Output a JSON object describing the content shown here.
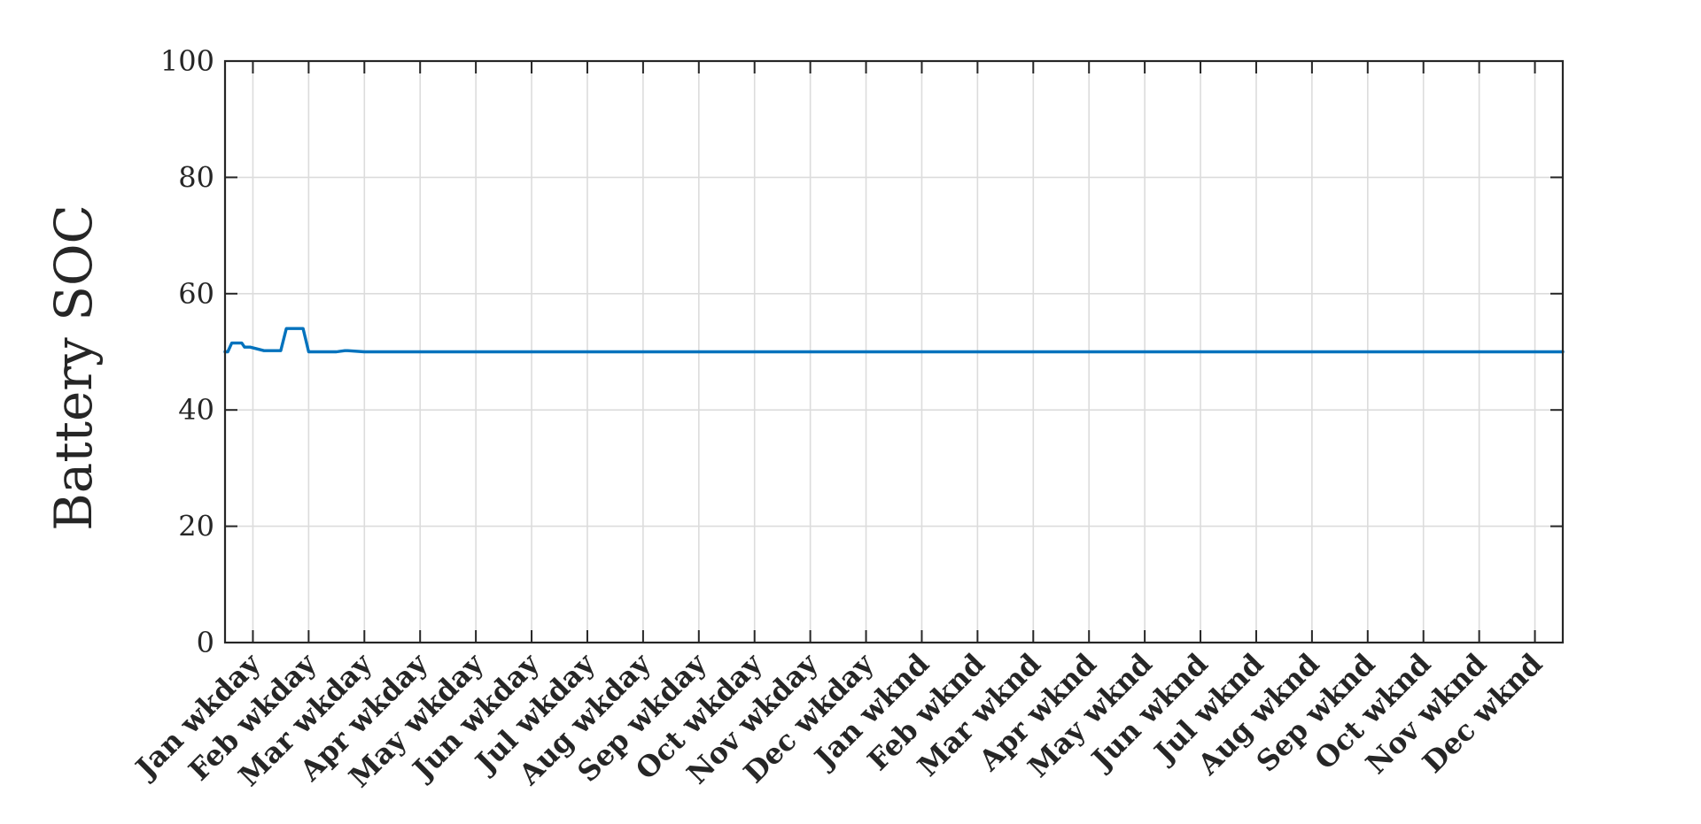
{
  "chart_data": {
    "type": "line",
    "title": "",
    "xlabel": "",
    "ylabel": "Battery SOC",
    "ylim": [
      0,
      100
    ],
    "yticks": [
      0,
      20,
      40,
      60,
      80,
      100
    ],
    "xlim": [
      0,
      24
    ],
    "grid": "on",
    "legend": "none",
    "categories": [
      "Jan wkday",
      "Feb wkday",
      "Mar wkday",
      "Apr wkday",
      "May wkday",
      "Jun wkday",
      "Jul wkday",
      "Aug wkday",
      "Sep wkday",
      "Oct wkday",
      "Nov wkday",
      "Dec wkday",
      "Jan wknd",
      "Feb wknd",
      "Mar wknd",
      "Apr wknd",
      "May wknd",
      "Jun wknd",
      "Jul wknd",
      "Aug wknd",
      "Sep wknd",
      "Oct wknd",
      "Nov wknd",
      "Dec wknd"
    ],
    "series": [
      {
        "color": "#0072bd",
        "x": [
          0.0,
          0.05,
          0.12,
          0.3,
          0.35,
          0.45,
          0.7,
          0.8,
          1.0,
          1.1,
          1.4,
          1.5,
          1.65,
          2.0,
          2.15,
          2.2,
          2.5,
          2.6,
          2.7,
          3.5,
          3.9,
          4.0,
          4.05,
          4.1,
          4.2,
          4.4,
          4.5,
          4.6,
          4.65,
          4.8,
          4.85,
          4.95,
          5.05,
          5.1,
          5.2,
          5.25,
          5.3,
          5.35,
          5.5,
          5.55,
          5.6,
          5.7,
          5.8,
          5.85,
          5.9,
          5.95,
          6.0,
          6.05,
          6.1,
          6.15,
          6.2,
          6.25,
          6.3,
          6.4,
          6.5,
          6.55,
          6.6,
          6.7,
          6.8,
          6.9,
          7.0,
          7.1,
          7.2,
          7.3,
          7.35,
          7.4,
          7.45,
          7.55,
          7.6,
          7.65,
          7.7,
          7.72,
          7.75,
          7.8,
          7.85,
          7.9,
          8.0,
          8.05,
          8.1,
          8.15,
          8.2,
          8.3,
          8.4,
          8.5,
          8.55,
          8.65,
          8.75,
          8.8,
          8.85,
          9.0,
          9.1,
          9.3,
          9.4,
          9.5,
          9.6,
          9.65,
          9.7,
          9.75,
          9.85,
          9.9,
          9.95,
          10.05,
          10.15,
          10.25,
          10.3,
          10.35,
          10.4,
          10.5,
          10.6,
          10.75,
          10.85,
          10.9,
          10.95,
          11.05,
          11.15,
          11.2,
          11.3,
          11.4,
          11.5,
          11.55,
          11.65,
          11.8,
          11.9,
          11.95,
          12.05,
          12.1,
          12.25,
          12.3,
          12.35,
          12.4,
          12.6,
          13.1,
          13.15,
          13.3,
          13.35,
          13.5,
          13.55,
          13.9,
          13.95,
          14.1,
          14.15,
          14.35,
          14.4,
          14.5,
          14.6,
          15.05,
          15.15,
          15.3,
          15.6,
          15.7,
          15.9,
          16.1,
          16.2,
          16.3,
          16.35,
          16.55,
          16.6,
          16.8,
          17.1,
          17.2,
          17.4,
          17.45,
          17.55,
          17.65,
          17.75,
          18.0,
          18.05,
          18.15,
          18.35,
          18.45,
          18.6,
          18.65,
          19.0,
          19.05,
          19.2,
          19.25,
          19.45,
          19.55,
          19.7,
          19.8,
          19.85,
          19.9,
          20.0,
          20.05,
          20.1,
          20.2,
          20.6,
          20.65,
          20.75,
          20.8,
          20.9,
          21.0,
          21.15,
          21.3,
          21.5,
          21.55,
          21.6,
          21.8,
          22.05,
          22.15,
          22.25,
          22.3,
          22.4,
          22.5,
          22.6,
          22.65,
          22.7,
          22.8,
          22.9,
          23.0,
          23.05,
          23.1,
          23.15,
          23.2,
          23.3,
          23.4,
          23.45,
          23.55,
          23.8,
          23.9,
          24.0
        ],
        "y": [
          50,
          50,
          51.5,
          51.5,
          50.8,
          50.8,
          50.2,
          50.2,
          50.2,
          54,
          54,
          50,
          50,
          50,
          50.2,
          50.2,
          50,
          50,
          50,
          50,
          50,
          50,
          50,
          50,
          50,
          50,
          50,
          50,
          50,
          50,
          50,
          50,
          50,
          50,
          50,
          50,
          50,
          50,
          50,
          50,
          50,
          50,
          50,
          50,
          50,
          50,
          50,
          50,
          50,
          50,
          50,
          50,
          50,
          50,
          50,
          50,
          50,
          50,
          50,
          50,
          50,
          50,
          50,
          50,
          50,
          50,
          50,
          50,
          50,
          50,
          50,
          50,
          50,
          50,
          50,
          50,
          50,
          50,
          50,
          50,
          50,
          50,
          50,
          50,
          50,
          50,
          50,
          50,
          50,
          50,
          50,
          50,
          50,
          50,
          50,
          50,
          50,
          50,
          50,
          50,
          50,
          50,
          50,
          50,
          50,
          50,
          50,
          50,
          50,
          50,
          50,
          50,
          50,
          50,
          50,
          50,
          50,
          50,
          50,
          50,
          50,
          50,
          50,
          50,
          50,
          50,
          50,
          50,
          50,
          50,
          50,
          50,
          50,
          50,
          50,
          50,
          50,
          50,
          50,
          50,
          50,
          50,
          50,
          50,
          50,
          50,
          50,
          50,
          50,
          50,
          50,
          50,
          50,
          50,
          50,
          50,
          50,
          50,
          50,
          50,
          50,
          50,
          50,
          50,
          50,
          50,
          50,
          50,
          50,
          50,
          50,
          50,
          50,
          50,
          50,
          50,
          50,
          50,
          50,
          50,
          50,
          50,
          50,
          50,
          50,
          50,
          50,
          50,
          50,
          50,
          50,
          50,
          50,
          50,
          50,
          50,
          50,
          50,
          50,
          50,
          50,
          50,
          50,
          50,
          50,
          50,
          50,
          50,
          50,
          50,
          50,
          50,
          50,
          50,
          50,
          50,
          50,
          50,
          50,
          50,
          50
        ]
      }
    ]
  }
}
